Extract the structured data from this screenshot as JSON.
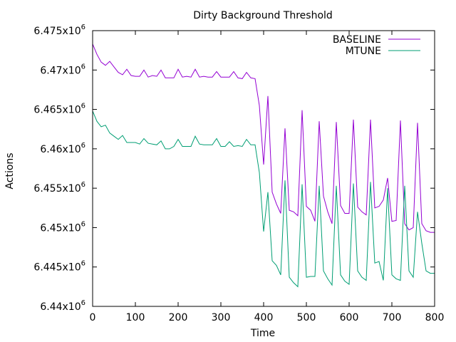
{
  "chart_data": {
    "type": "line",
    "title": "Dirty Background Threshold",
    "xlabel": "Time",
    "ylabel": "Actions",
    "xlim": [
      0,
      800
    ],
    "ylim": [
      6.44,
      6.475
    ],
    "y_unit_suffix": "x10",
    "y_unit_exponent": "6",
    "xticks": [
      "0",
      "100",
      "200",
      "300",
      "400",
      "500",
      "600",
      "700",
      "800"
    ],
    "yticks": [
      "6.44",
      "6.445",
      "6.45",
      "6.455",
      "6.46",
      "6.465",
      "6.47",
      "6.475"
    ],
    "grid": false,
    "legend_position": "top-right",
    "x_step": 10,
    "series": [
      {
        "name": "BASELINE",
        "color": "#9400d3",
        "values": [
          6.4733,
          6.472,
          6.471,
          6.4706,
          6.4711,
          6.4704,
          6.4697,
          6.4694,
          6.4701,
          6.4693,
          6.4692,
          6.4692,
          6.47,
          6.4691,
          6.4693,
          6.4692,
          6.47,
          6.469,
          6.469,
          6.469,
          6.4701,
          6.4691,
          6.4692,
          6.4691,
          6.4701,
          6.4691,
          6.4692,
          6.4691,
          6.4691,
          6.4698,
          6.4691,
          6.4691,
          6.4691,
          6.4698,
          6.469,
          6.4689,
          6.4697,
          6.469,
          6.4689,
          6.4655,
          6.458,
          6.4667,
          6.4545,
          6.453,
          6.4518,
          6.4626,
          6.4522,
          6.452,
          6.4515,
          6.4649,
          6.4527,
          6.4522,
          6.4508,
          6.4635,
          6.454,
          6.452,
          6.4505,
          6.4634,
          6.4528,
          6.4518,
          6.4518,
          6.4637,
          6.4526,
          6.452,
          6.4516,
          6.4637,
          6.4525,
          6.4527,
          6.4535,
          6.4563,
          6.4508,
          6.4509,
          6.4636,
          6.4505,
          6.4497,
          6.45,
          6.4633,
          6.4505,
          6.4496,
          6.4494,
          6.4494
        ]
      },
      {
        "name": "MTUNE",
        "color": "#009e73",
        "values": [
          6.4648,
          6.4635,
          6.4628,
          6.463,
          6.462,
          6.4616,
          6.4612,
          6.4617,
          6.4608,
          6.4608,
          6.4608,
          6.4606,
          6.4613,
          6.4607,
          6.4606,
          6.4605,
          6.461,
          6.46,
          6.46,
          6.4603,
          6.4612,
          6.4603,
          6.4603,
          6.4603,
          6.4616,
          6.4606,
          6.4605,
          6.4605,
          6.4605,
          6.4613,
          6.4603,
          6.4603,
          6.4609,
          6.4603,
          6.4604,
          6.4603,
          6.4612,
          6.4605,
          6.4605,
          6.457,
          6.4495,
          6.4545,
          6.4458,
          6.4452,
          6.444,
          6.456,
          6.4437,
          6.443,
          6.4425,
          6.4555,
          6.4437,
          6.4438,
          6.4438,
          6.4553,
          6.4445,
          6.4435,
          6.4427,
          6.4553,
          6.444,
          6.4432,
          6.4428,
          6.4556,
          6.4445,
          6.4437,
          6.4433,
          6.4558,
          6.4455,
          6.4457,
          6.4433,
          6.455,
          6.444,
          6.4435,
          6.4433,
          6.4553,
          6.4445,
          6.4437,
          6.452,
          6.448,
          6.4445,
          6.4442,
          6.4442
        ]
      }
    ]
  }
}
